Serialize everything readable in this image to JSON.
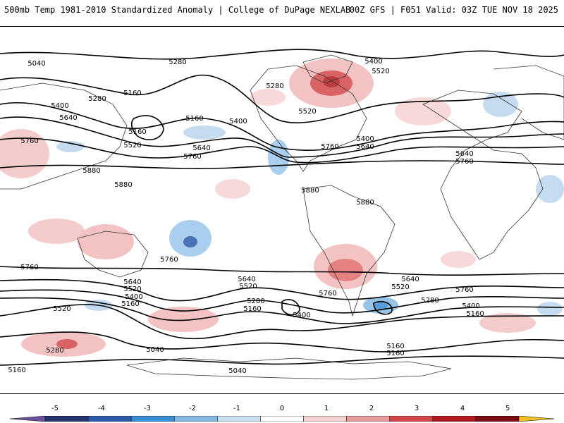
{
  "header": {
    "title_left": "500mb Temp 1981-2010 Standardized Anomaly | College of DuPage NEXLAB",
    "title_right": "00Z GFS | F051 Valid: 03Z TUE NOV 18 2025"
  },
  "contour_labels": [
    "5040",
    "5280",
    "5160",
    "5400",
    "5280",
    "5640",
    "5160",
    "5160",
    "5400",
    "5760",
    "5520",
    "5640",
    "5760",
    "5880",
    "5880",
    "5280",
    "5520",
    "5400",
    "5640",
    "5760",
    "5400",
    "5520",
    "5880",
    "5880",
    "5640",
    "5760",
    "5760",
    "5760",
    "5640",
    "5520",
    "5400",
    "5160",
    "5520",
    "5280",
    "5040",
    "5040",
    "5160",
    "5640",
    "5520",
    "5280",
    "5160",
    "5400",
    "5760",
    "5640",
    "5520",
    "5280",
    "5400",
    "5160",
    "5760",
    "5160",
    "5160"
  ],
  "colorbar": {
    "ticks": [
      "-5",
      "-4",
      "-3",
      "-2",
      "-1",
      "0",
      "1",
      "2",
      "3",
      "4",
      "5"
    ],
    "colors": [
      "#6d4fa0",
      "#25346e",
      "#2b5aa8",
      "#3a8fd4",
      "#86b9e2",
      "#c9dff0",
      "#ffffff",
      "#f5d2d2",
      "#e89b9b",
      "#d2484a",
      "#b3191f",
      "#7a0b10",
      "#f0c020"
    ]
  }
}
